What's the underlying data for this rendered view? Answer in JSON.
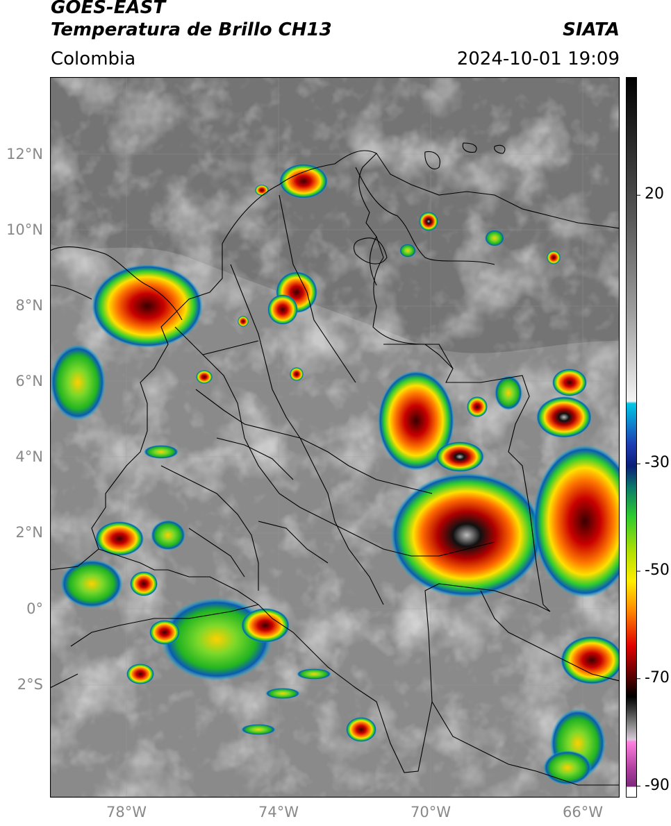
{
  "header": {
    "title_line1": "GOES-EAST",
    "title_line2": "Temperatura de Brillo CH13",
    "region": "Colombia",
    "agency": "SIATA",
    "datetime": "2024-10-01 19:09"
  },
  "map": {
    "lat_labels": [
      "12°N",
      "10°N",
      "8°N",
      "6°N",
      "4°N",
      "2°N",
      "0°",
      "2°S"
    ],
    "lon_labels": [
      "78°W",
      "74°W",
      "70°W",
      "66°W"
    ]
  },
  "colorbar": {
    "tick_labels": [
      "20",
      "-30",
      "-50",
      "-70",
      "-90"
    ],
    "tick_values": [
      20,
      -30,
      -50,
      -70,
      -90
    ],
    "range": [
      -92,
      42
    ],
    "colors": {
      "warm_gray": "#7a7a7a",
      "light": "#f2f2f2",
      "cyan": "#00c8e6",
      "navy": "#0a1e78",
      "green": "#2ecc2e",
      "yellow": "#ffee00",
      "orange": "#ff8a00",
      "red": "#e00000",
      "black": "#000000",
      "magenta": "#e060c8",
      "purple": "#7a2a7a"
    }
  }
}
